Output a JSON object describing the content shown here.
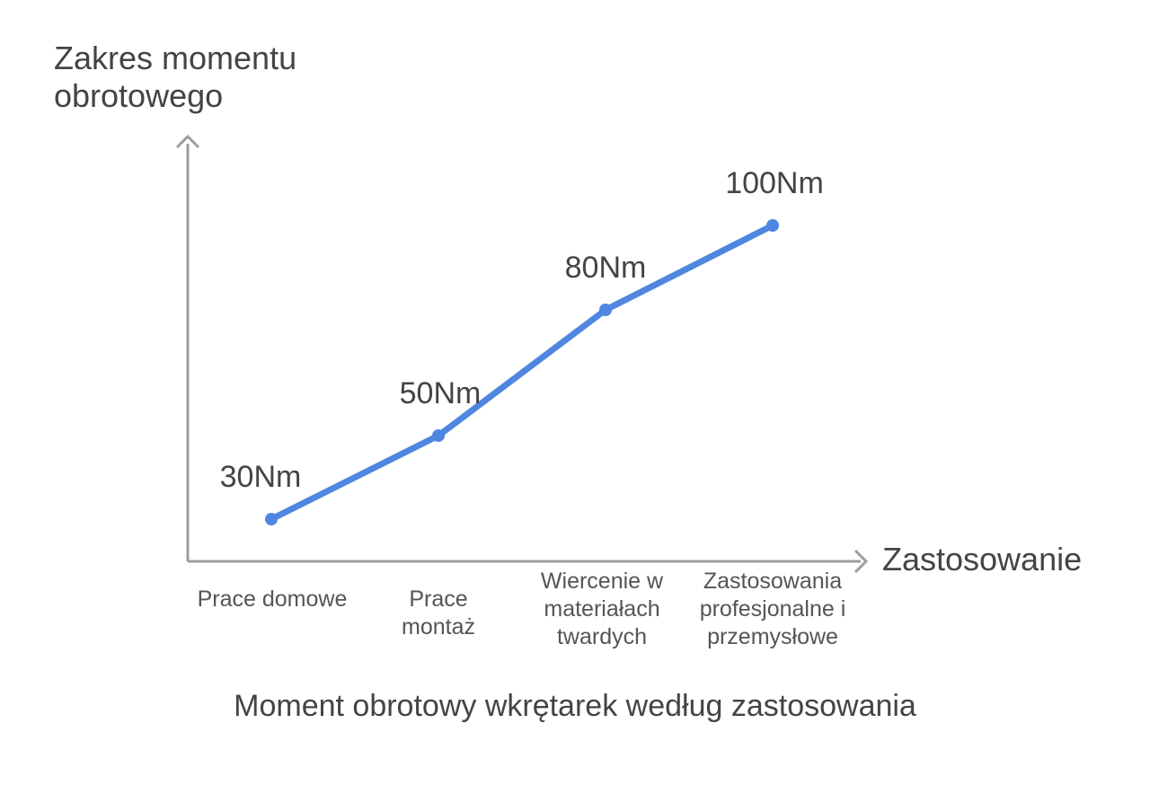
{
  "chart_data": {
    "type": "line",
    "title": "Moment obrotowy wkrętarek według zastosowania",
    "xlabel": "Zastosowanie",
    "ylabel": "Zakres momentu obrotowego",
    "categories": [
      "Prace domowe",
      "Prace montaż",
      "Wiercenie w materiałach twardych",
      "Zastosowania profesjonalne i przemysłowe"
    ],
    "values": [
      30,
      50,
      80,
      100
    ],
    "data_labels": [
      "30Nm",
      "50Nm",
      "80Nm",
      "100Nm"
    ],
    "grid": false,
    "legend": "none",
    "colors": {
      "line": "#4f86e0",
      "axis": "#9e9e9e",
      "text": "#444444"
    }
  }
}
